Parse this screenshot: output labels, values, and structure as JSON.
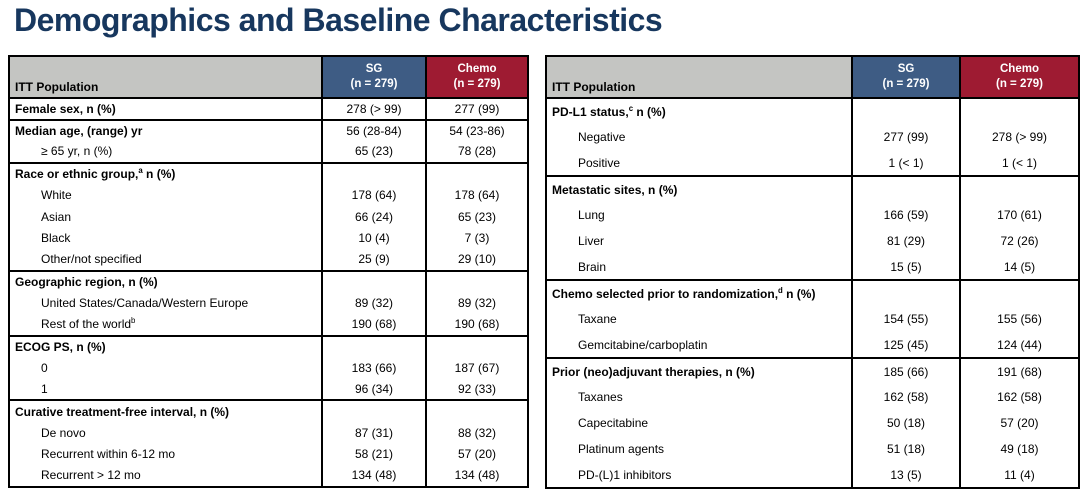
{
  "title": "Demographics and Baseline Characteristics",
  "colors": {
    "title_navy": "#17375E",
    "header_gray": "#C4C5C2",
    "sg_blue": "#3E5C84",
    "chemo_red": "#9E1B32",
    "border": "#000000"
  },
  "tables": [
    {
      "header": {
        "population": "ITT Population",
        "sg_line1": "SG",
        "sg_line2": "(n = 279)",
        "chemo_line1": "Chemo",
        "chemo_line2": "(n = 279)"
      },
      "rows": [
        {
          "label": "Female sex, n (%)",
          "bold": true,
          "indent": 0,
          "group_start": true,
          "sg": "278 (> 99)",
          "chemo": "277 (99)"
        },
        {
          "label": "Median age, (range) yr",
          "bold": true,
          "indent": 0,
          "group_start": true,
          "sg": "56 (28-84)",
          "chemo": "54 (23-86)"
        },
        {
          "label": "≥ 65 yr, n (%)",
          "bold": false,
          "indent": 1,
          "group_start": false,
          "sg": "65 (23)",
          "chemo": "78 (28)"
        },
        {
          "label": "Race or ethnic group,",
          "sup": "a",
          "label_after": " n (%)",
          "bold": true,
          "indent": 0,
          "group_start": true,
          "sg": "",
          "chemo": ""
        },
        {
          "label": "White",
          "bold": false,
          "indent": 1,
          "group_start": false,
          "sg": "178 (64)",
          "chemo": "178 (64)"
        },
        {
          "label": "Asian",
          "bold": false,
          "indent": 1,
          "group_start": false,
          "sg": "66 (24)",
          "chemo": "65 (23)"
        },
        {
          "label": "Black",
          "bold": false,
          "indent": 1,
          "group_start": false,
          "sg": "10 (4)",
          "chemo": "7 (3)"
        },
        {
          "label": "Other/not specified",
          "bold": false,
          "indent": 1,
          "group_start": false,
          "sg": "25 (9)",
          "chemo": "29 (10)"
        },
        {
          "label": "Geographic region, n (%)",
          "bold": true,
          "indent": 0,
          "group_start": true,
          "sg": "",
          "chemo": ""
        },
        {
          "label": "United States/Canada/Western Europe",
          "bold": false,
          "indent": 1,
          "group_start": false,
          "sg": "89 (32)",
          "chemo": "89 (32)"
        },
        {
          "label": "Rest of the world",
          "sup": "b",
          "label_after": "",
          "bold": false,
          "indent": 1,
          "group_start": false,
          "sg": "190 (68)",
          "chemo": "190 (68)"
        },
        {
          "label": "ECOG PS, n (%)",
          "bold": true,
          "indent": 0,
          "group_start": true,
          "sg": "",
          "chemo": ""
        },
        {
          "label": "0",
          "bold": false,
          "indent": 1,
          "group_start": false,
          "sg": "183 (66)",
          "chemo": "187 (67)"
        },
        {
          "label": "1",
          "bold": false,
          "indent": 1,
          "group_start": false,
          "sg": "96 (34)",
          "chemo": "92 (33)"
        },
        {
          "label": "Curative treatment-free interval, n (%)",
          "bold": true,
          "indent": 0,
          "group_start": true,
          "sg": "",
          "chemo": ""
        },
        {
          "label": "De novo",
          "bold": false,
          "indent": 1,
          "group_start": false,
          "sg": "87 (31)",
          "chemo": "88 (32)"
        },
        {
          "label": "Recurrent within 6-12 mo",
          "bold": false,
          "indent": 1,
          "group_start": false,
          "sg": "58 (21)",
          "chemo": "57 (20)"
        },
        {
          "label": "Recurrent > 12 mo",
          "bold": false,
          "indent": 1,
          "group_start": false,
          "sg": "134 (48)",
          "chemo": "134 (48)"
        }
      ]
    },
    {
      "header": {
        "population": "ITT Population",
        "sg_line1": "SG",
        "sg_line2": "(n = 279)",
        "chemo_line1": "Chemo",
        "chemo_line2": "(n = 279)"
      },
      "rows": [
        {
          "label": "PD-L1 status,",
          "sup": "c",
          "label_after": " n (%)",
          "bold": true,
          "indent": 0,
          "group_start": true,
          "sg": "",
          "chemo": ""
        },
        {
          "label": "Negative",
          "bold": false,
          "indent": 1,
          "group_start": false,
          "sg": "277 (99)",
          "chemo": "278 (> 99)"
        },
        {
          "label": "Positive",
          "bold": false,
          "indent": 1,
          "group_start": false,
          "sg": "1 (< 1)",
          "chemo": "1 (< 1)"
        },
        {
          "label": "Metastatic sites, n (%)",
          "bold": true,
          "indent": 0,
          "group_start": true,
          "sg": "",
          "chemo": ""
        },
        {
          "label": "Lung",
          "bold": false,
          "indent": 1,
          "group_start": false,
          "sg": "166 (59)",
          "chemo": "170 (61)"
        },
        {
          "label": "Liver",
          "bold": false,
          "indent": 1,
          "group_start": false,
          "sg": "81 (29)",
          "chemo": "72 (26)"
        },
        {
          "label": "Brain",
          "bold": false,
          "indent": 1,
          "group_start": false,
          "sg": "15 (5)",
          "chemo": "14 (5)"
        },
        {
          "label": "Chemo selected prior to randomization,",
          "sup": "d",
          "label_after": " n (%)",
          "bold": true,
          "indent": 0,
          "group_start": true,
          "sg": "",
          "chemo": ""
        },
        {
          "label": "Taxane",
          "bold": false,
          "indent": 1,
          "group_start": false,
          "sg": "154 (55)",
          "chemo": "155 (56)"
        },
        {
          "label": "Gemcitabine/carboplatin",
          "bold": false,
          "indent": 1,
          "group_start": false,
          "sg": "125 (45)",
          "chemo": "124 (44)"
        },
        {
          "label": "Prior (neo)adjuvant therapies, n (%)",
          "bold": true,
          "indent": 0,
          "group_start": true,
          "sg": "185 (66)",
          "chemo": "191 (68)"
        },
        {
          "label": "Taxanes",
          "bold": false,
          "indent": 1,
          "group_start": false,
          "sg": "162 (58)",
          "chemo": "162 (58)"
        },
        {
          "label": "Capecitabine",
          "bold": false,
          "indent": 1,
          "group_start": false,
          "sg": "50 (18)",
          "chemo": "57 (20)"
        },
        {
          "label": "Platinum agents",
          "bold": false,
          "indent": 1,
          "group_start": false,
          "sg": "51 (18)",
          "chemo": "49 (18)"
        },
        {
          "label": "PD-(L)1 inhibitors",
          "bold": false,
          "indent": 1,
          "group_start": false,
          "sg": "13 (5)",
          "chemo": "11 (4)"
        }
      ]
    }
  ]
}
